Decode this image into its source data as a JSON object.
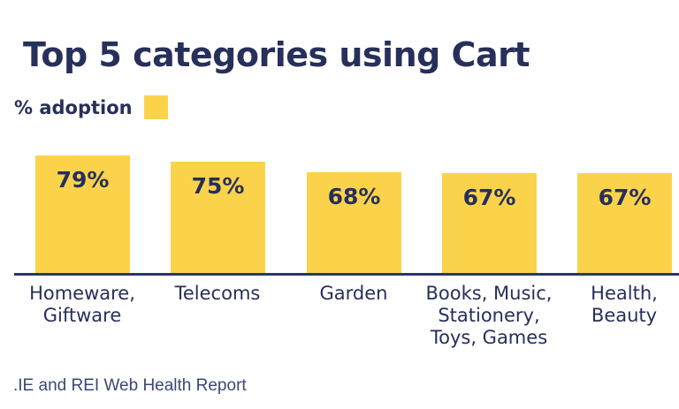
{
  "title": "Top 5 categories using Cart",
  "legend": {
    "label": "% adoption",
    "swatch_color": "#FBD34B"
  },
  "footer": {
    "source": ".IE and REI Web Health Report"
  },
  "colors": {
    "navy": "#272F5B",
    "yellow": "#FBD34B",
    "axis": "#2B3865",
    "footer_text": "#3A4875",
    "background": "#FFFFFF"
  },
  "chart_data": {
    "type": "bar",
    "title": "Top 5 categories using Cart",
    "xlabel": "",
    "ylabel": "% adoption",
    "ylim": [
      0,
      100
    ],
    "grid": false,
    "legend_position": "top-left",
    "bar_color": "#FBD34B",
    "label_color": "#272F5B",
    "categories": [
      "Homeware, Giftware",
      "Telecoms",
      "Garden",
      "Books, Music, Stationery, Toys, Games",
      "Health, Beauty"
    ],
    "category_lines": [
      [
        "Homeware,",
        "Giftware"
      ],
      [
        "Telecoms"
      ],
      [
        "Garden"
      ],
      [
        "Books, Music,",
        "Stationery,",
        "Toys, Games"
      ],
      [
        "Health,",
        "Beauty"
      ]
    ],
    "values": [
      79,
      75,
      68,
      67,
      67
    ],
    "value_labels": [
      "79%",
      "75%",
      "68%",
      "67%",
      "67%"
    ]
  }
}
